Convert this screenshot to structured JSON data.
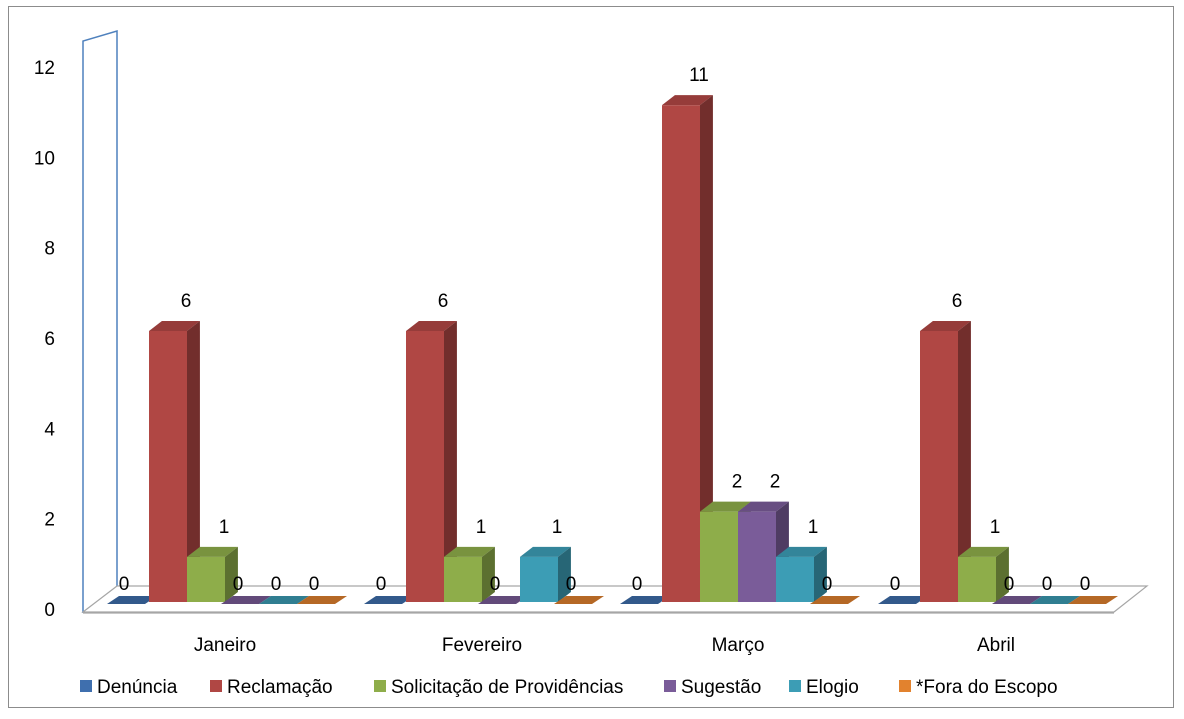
{
  "chart_data": {
    "type": "bar",
    "style": "3d-clustered-column",
    "title": "",
    "xlabel": "",
    "ylabel": "",
    "ylim": [
      0,
      12
    ],
    "yticks": [
      0,
      2,
      4,
      6,
      8,
      10,
      12
    ],
    "categories": [
      "Janeiro",
      "Fevereiro",
      "Março",
      "Abril"
    ],
    "series": [
      {
        "name": "Denúncia",
        "color": "#3f6fae",
        "values": [
          0,
          0,
          0,
          0
        ]
      },
      {
        "name": "Reclamação",
        "color": "#b04744",
        "values": [
          6,
          6,
          11,
          6
        ]
      },
      {
        "name": "Solicitação de Providências",
        "color": "#8ead4a",
        "values": [
          1,
          1,
          2,
          1
        ]
      },
      {
        "name": "Sugestão",
        "color": "#7a5c99",
        "values": [
          0,
          0,
          2,
          0
        ]
      },
      {
        "name": "Elogio",
        "color": "#3c9db5",
        "values": [
          0,
          1,
          1,
          0
        ]
      },
      {
        "name": "*Fora do Escopo",
        "color": "#e2822e",
        "values": [
          0,
          0,
          0,
          0
        ]
      }
    ],
    "data_labels": [
      [
        "0",
        "6",
        "1",
        "0",
        "0",
        "0"
      ],
      [
        "0",
        "6",
        "1",
        "0",
        "1",
        "0"
      ],
      [
        "0",
        "11",
        "2",
        "2",
        "1",
        "0"
      ],
      [
        "0",
        "6",
        "1",
        "0",
        "0",
        "0"
      ]
    ],
    "grid": false,
    "legend_position": "bottom"
  }
}
